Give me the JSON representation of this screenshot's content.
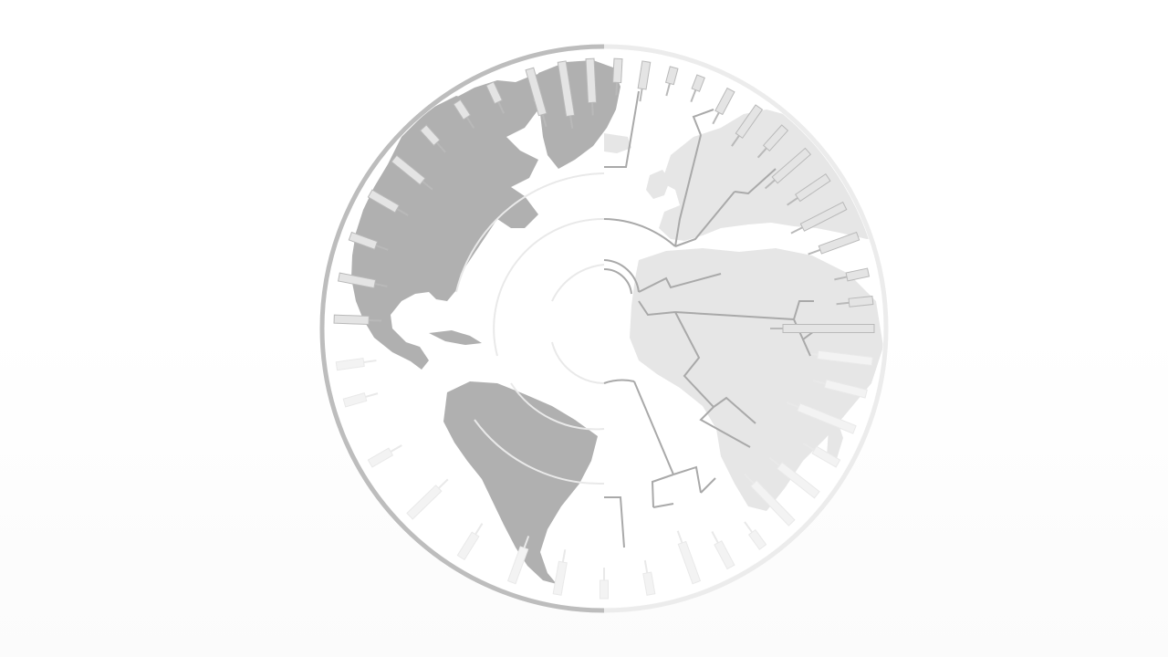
{
  "diagram": {
    "type": "radial-phylogenetic-tree-over-globe",
    "globe": {
      "land_left": "#b0b0b0",
      "land_right": "#e6e6e6",
      "rim_left": "#bdbdbd",
      "rim_right": "#ececec",
      "ocean": "#ffffff"
    },
    "tree": {
      "branch_color_active": "#a9a9a9",
      "branch_color_faded": "#e9e9e9",
      "leaf_fill": "#e4e4e4",
      "leaf_stroke": "#b9b9b9",
      "active_leaves": [
        {
          "angle": -88,
          "len": 38
        },
        {
          "angle": -79,
          "len": 40
        },
        {
          "angle": -70,
          "len": 30
        },
        {
          "angle": -60,
          "len": 34
        },
        {
          "angle": -51,
          "len": 40
        },
        {
          "angle": -42,
          "len": 22
        },
        {
          "angle": -33,
          "len": 20
        },
        {
          "angle": -25,
          "len": 22
        },
        {
          "angle": -16,
          "len": 52
        },
        {
          "angle": -9,
          "len": 60
        },
        {
          "angle": -3,
          "len": 48
        },
        {
          "angle": 3,
          "len": 26
        },
        {
          "angle": 9,
          "len": 30
        },
        {
          "angle": 15,
          "len": 18
        },
        {
          "angle": 21,
          "len": 16
        },
        {
          "angle": 28,
          "len": 28
        },
        {
          "angle": 35,
          "len": 38
        },
        {
          "angle": 42,
          "len": 30
        },
        {
          "angle": 49,
          "len": 48
        },
        {
          "angle": 56,
          "len": 40
        },
        {
          "angle": 63,
          "len": 52
        },
        {
          "angle": 70,
          "len": 44
        },
        {
          "angle": 78,
          "len": 24
        },
        {
          "angle": 84,
          "len": 26
        },
        {
          "angle": 90,
          "len": 100
        }
      ],
      "faded_leaves": [
        {
          "angle": 97,
          "len": 60
        },
        {
          "angle": 104,
          "len": 46
        },
        {
          "angle": 112,
          "len": 66
        },
        {
          "angle": 120,
          "len": 30
        },
        {
          "angle": 128,
          "len": 52
        },
        {
          "angle": 136,
          "len": 60
        },
        {
          "angle": 144,
          "len": 20
        },
        {
          "angle": 152,
          "len": 30
        },
        {
          "angle": 160,
          "len": 46
        },
        {
          "angle": 170,
          "len": 24
        },
        {
          "angle": 180,
          "len": 20
        },
        {
          "angle": 190,
          "len": 36
        },
        {
          "angle": 200,
          "len": 40
        },
        {
          "angle": 212,
          "len": 30
        },
        {
          "angle": 226,
          "len": 44
        },
        {
          "angle": 240,
          "len": 26
        },
        {
          "angle": 254,
          "len": 24
        },
        {
          "angle": 262,
          "len": 30
        }
      ]
    }
  }
}
